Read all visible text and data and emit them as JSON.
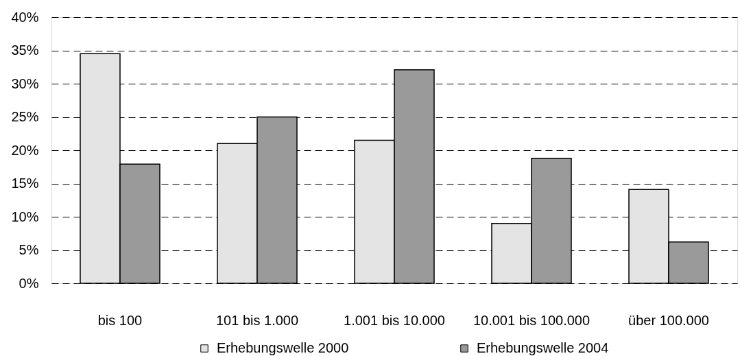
{
  "chart_data": {
    "type": "bar",
    "categories": [
      "bis 100",
      "101 bis 1.000",
      "1.001 bis 10.000",
      "10.001 bis 100.000",
      "über 100.000"
    ],
    "series": [
      {
        "name": "Erhebungswelle 2000",
        "color": "#e4e4e4",
        "values": [
          34.5,
          21.0,
          21.5,
          9.0,
          14.1
        ]
      },
      {
        "name": "Erhebungswelle 2004",
        "color": "#9a9a9a",
        "values": [
          17.9,
          25.0,
          32.1,
          18.8,
          6.2
        ]
      }
    ],
    "ylim": [
      0,
      40
    ],
    "yticks": [
      {
        "value": 0,
        "label": "0%"
      },
      {
        "value": 5,
        "label": "5%"
      },
      {
        "value": 10,
        "label": "10%"
      },
      {
        "value": 15,
        "label": "15%"
      },
      {
        "value": 20,
        "label": "20%"
      },
      {
        "value": 25,
        "label": "25%"
      },
      {
        "value": 30,
        "label": "30%"
      },
      {
        "value": 35,
        "label": "35%"
      },
      {
        "value": 40,
        "label": "40%"
      }
    ],
    "grid": "y",
    "legend": "bottom"
  }
}
